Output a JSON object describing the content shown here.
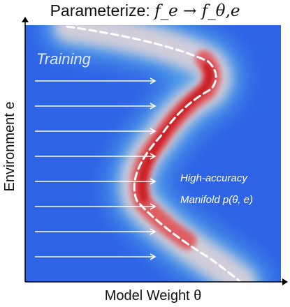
{
  "title": {
    "prefix": "Parameterize: ",
    "formula": "f_e → f_θ,e"
  },
  "axes": {
    "xlabel": "Model Weight θ",
    "ylabel": "Environment e"
  },
  "labels": {
    "training": "Training",
    "manifold_line1": "High-accuracy",
    "manifold_line2": "Manifold p(θ, e)"
  },
  "colors": {
    "background_blue": "#2e63e6",
    "manifold_red": "#d2202a",
    "arrow": "#ffffff",
    "curve": "#ffffff",
    "axis": "#000000"
  },
  "icons": {
    "arrow_count": 8,
    "arrow_name": "right-arrow-icon"
  }
}
